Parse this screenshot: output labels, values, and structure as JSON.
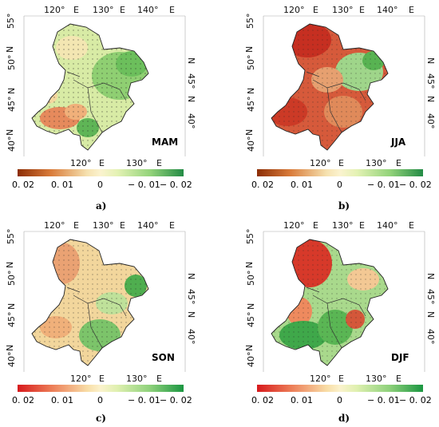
{
  "colorbar": {
    "tick_labels": [
      "0. 02",
      "0. 01",
      "0",
      "− 0. 01",
      "− 0. 02"
    ],
    "colors": [
      "#d7301f",
      "#e6794a",
      "#f2c48a",
      "#f7efc0",
      "#d9efb0",
      "#8fd07a",
      "#2e9e44"
    ]
  },
  "panels": [
    {
      "caption": "a)",
      "season": "MAM",
      "top_axis": [
        "120°",
        "E",
        "130°",
        "E",
        "140°",
        "E"
      ],
      "bottom_axis": [
        "120°",
        "E",
        "130°",
        "E"
      ],
      "left_axis": [
        "55°",
        "N",
        "50°",
        "N",
        "45°",
        "N",
        "40°"
      ],
      "right_axis": [
        "N",
        "45°",
        "N",
        "40°"
      ],
      "cb_ticks": [
        "0. 02",
        "0. 01",
        "0",
        "− 0. 01",
        "− 0. 02"
      ]
    },
    {
      "caption": "b)",
      "season": "JJA",
      "top_axis": [
        "120°",
        "E",
        "130°",
        "E",
        "140°",
        "E"
      ],
      "bottom_axis": [
        "120°",
        "E",
        "130°",
        "E"
      ],
      "left_axis": [
        "55°",
        "N",
        "50°",
        "N",
        "45°",
        "N",
        "40°"
      ],
      "right_axis": [
        "N",
        "45°",
        "N",
        "40°"
      ],
      "cb_ticks": [
        "0. 02",
        "0. 01",
        "0",
        "− 0. 01",
        "− 0. 02"
      ]
    },
    {
      "caption": "c)",
      "season": "SON",
      "top_axis": [
        "120°",
        "E",
        "130°",
        "E",
        "140°",
        "E"
      ],
      "bottom_axis": [
        "120°",
        "E",
        "130°",
        "E"
      ],
      "left_axis": [
        "55°",
        "N",
        "50°",
        "N",
        "45°",
        "N",
        "40°"
      ],
      "right_axis": [
        "N",
        "45°",
        "N",
        "40°"
      ],
      "cb_ticks": [
        "0. 02",
        "0. 01",
        "0",
        "− 0. 01",
        "− 0. 02"
      ]
    },
    {
      "caption": "d)",
      "season": "DJF",
      "top_axis": [
        "120°",
        "E",
        "130°",
        "E",
        "140°",
        "E"
      ],
      "bottom_axis": [
        "120°",
        "E",
        "130°",
        "E"
      ],
      "left_axis": [
        "55°",
        "N",
        "50°",
        "N",
        "45°",
        "N",
        "40°"
      ],
      "right_axis": [
        "N",
        "45°",
        "N",
        "40°"
      ],
      "cb_ticks": [
        "0. 02",
        "0. 01",
        "0",
        "− 0. 01",
        "− 0. 02"
      ]
    }
  ],
  "panel_fill_colors": [
    "#c8e39a",
    "#d44a2f",
    "#f0c98f",
    "#7cc46a"
  ]
}
